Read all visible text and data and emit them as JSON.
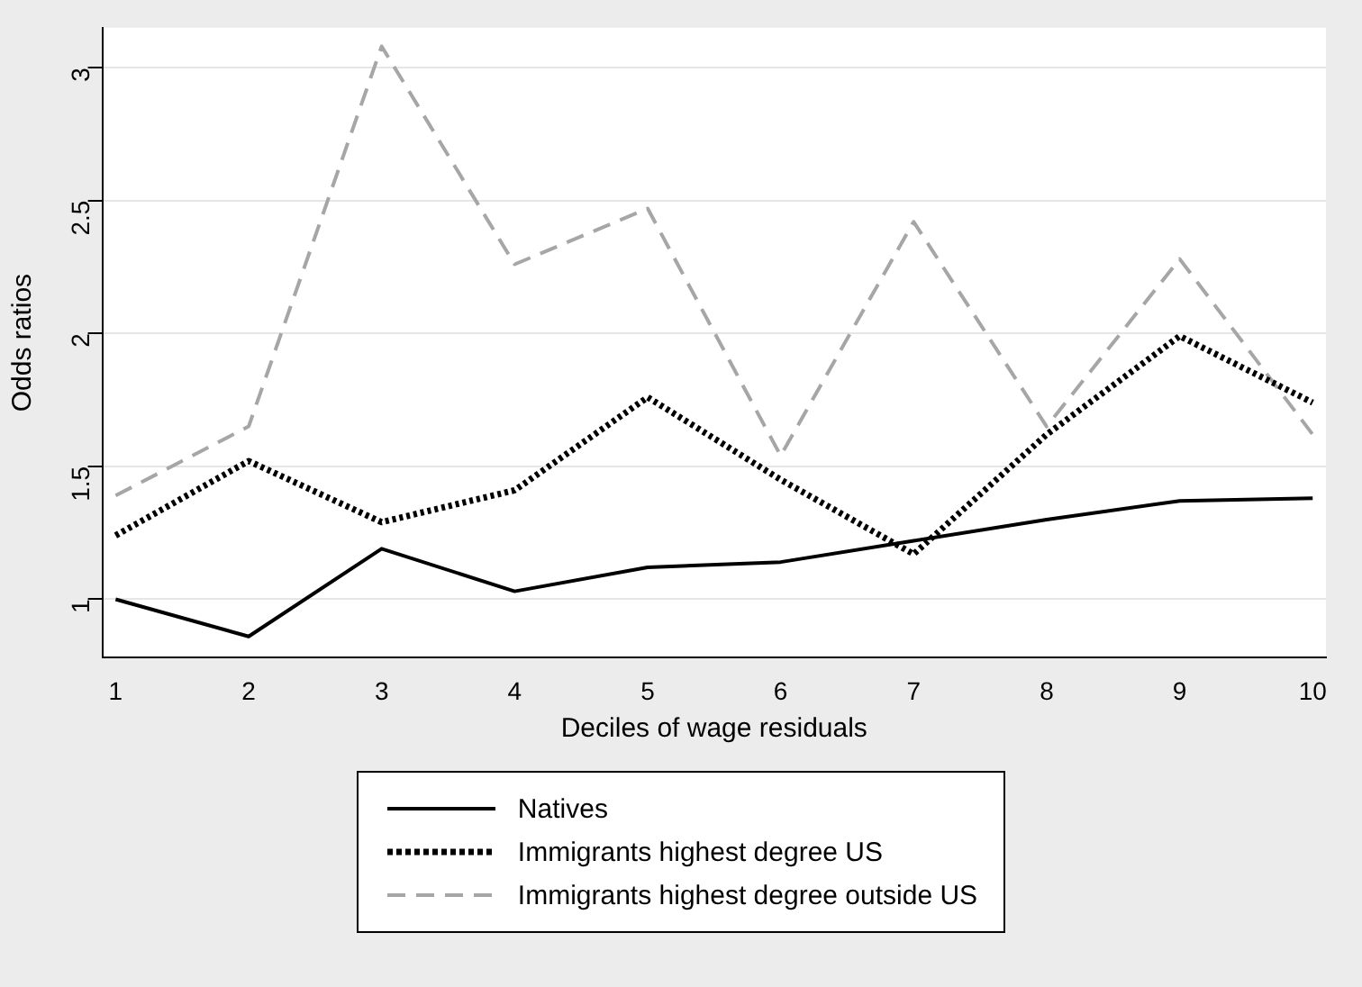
{
  "chart_data": {
    "type": "line",
    "xlabel": "Deciles of wage residuals",
    "ylabel": "Odds ratios",
    "x": [
      1,
      2,
      3,
      4,
      5,
      6,
      7,
      8,
      9,
      10
    ],
    "xlim": [
      0.9,
      10.1
    ],
    "xticks": [
      1,
      2,
      3,
      4,
      5,
      6,
      7,
      8,
      9,
      10
    ],
    "ylim": [
      0.78,
      3.15
    ],
    "yticks": [
      1,
      1.5,
      2,
      2.5,
      3
    ],
    "grid": "y",
    "legend": "bottom",
    "series": [
      {
        "name": "Natives",
        "color": "#000000",
        "line_style": "solid",
        "values": [
          1.0,
          0.86,
          1.19,
          1.03,
          1.12,
          1.14,
          1.22,
          1.3,
          1.37,
          1.38
        ]
      },
      {
        "name": "Immigrants highest degree US",
        "color": "#000000",
        "line_style": "dotted",
        "values": [
          1.24,
          1.52,
          1.29,
          1.41,
          1.76,
          1.45,
          1.17,
          1.62,
          1.99,
          1.74
        ]
      },
      {
        "name": "Immigrants highest degree outside US",
        "color": "#a6a6a6",
        "line_style": "dashed",
        "values": [
          1.39,
          1.65,
          3.08,
          2.26,
          2.47,
          1.54,
          2.42,
          1.65,
          2.28,
          1.62
        ]
      }
    ]
  }
}
